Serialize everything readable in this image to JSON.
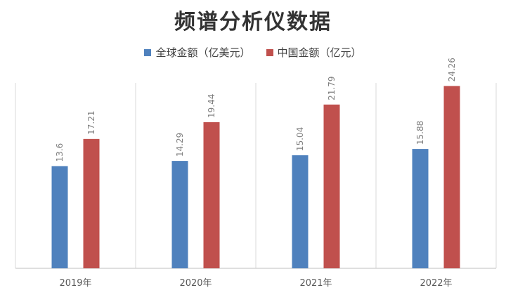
{
  "chart_data": {
    "type": "bar",
    "title": "频谱分析仪数据",
    "categories": [
      "2019年",
      "2020年",
      "2021年",
      "2022年"
    ],
    "series": [
      {
        "name": "全球金额（亿美元）",
        "color": "#4f81bd",
        "values": [
          13.6,
          14.29,
          15.04,
          15.88
        ]
      },
      {
        "name": "中国金额（亿元）",
        "color": "#c0504d",
        "values": [
          17.21,
          19.44,
          21.79,
          24.26
        ]
      }
    ],
    "ylim": [
      0,
      26
    ],
    "grid": "vertical category separators",
    "legend_position": "top",
    "data_labels": true
  }
}
